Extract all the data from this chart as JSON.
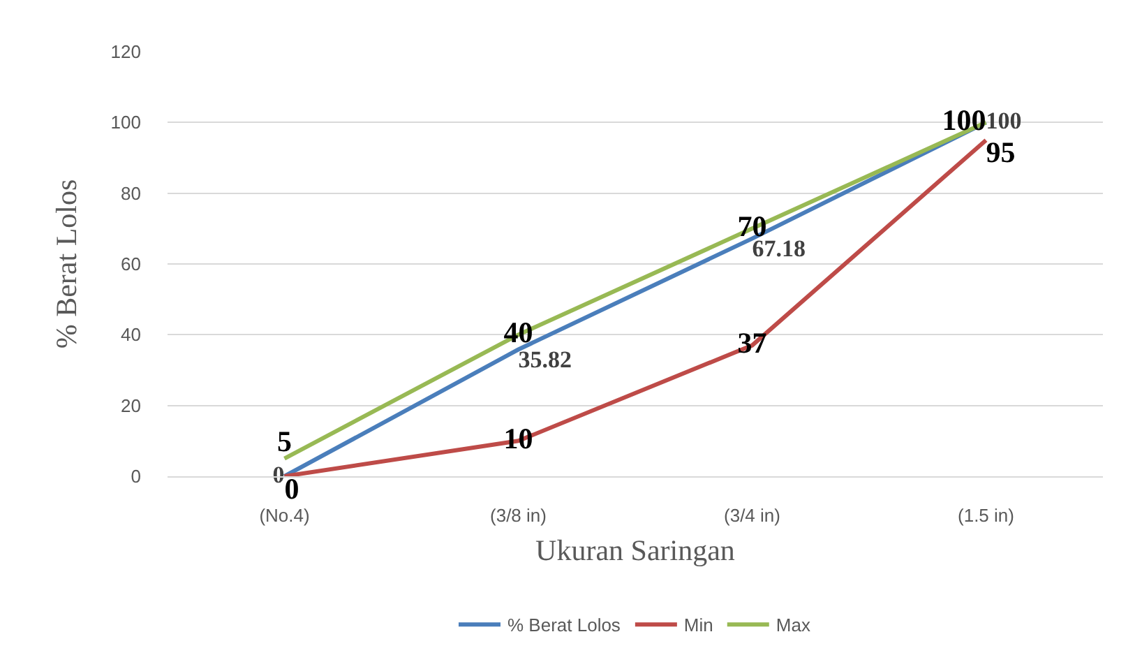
{
  "chart_data": {
    "type": "line",
    "categories": [
      "(No.4)",
      "(3/8 in)",
      "(3/4 in)",
      "(1.5 in)"
    ],
    "series": [
      {
        "name": "% Berat Lolos",
        "color": "#4a7ebb",
        "values": [
          0,
          35.82,
          67.18,
          100
        ]
      },
      {
        "name": "Min",
        "color": "#be4b48",
        "values": [
          0,
          10,
          37,
          95
        ]
      },
      {
        "name": "Max",
        "color": "#98b954",
        "values": [
          5,
          40,
          70,
          100
        ]
      }
    ],
    "xlabel": "Ukuran Saringan",
    "ylabel": "% Berat Lolos",
    "ylim": [
      0,
      120
    ],
    "yticks": [
      0,
      20,
      40,
      60,
      80,
      100,
      120
    ],
    "grid": "y",
    "legend": "bottom",
    "marker": "none",
    "line_style": "solid",
    "data_labels": true
  }
}
